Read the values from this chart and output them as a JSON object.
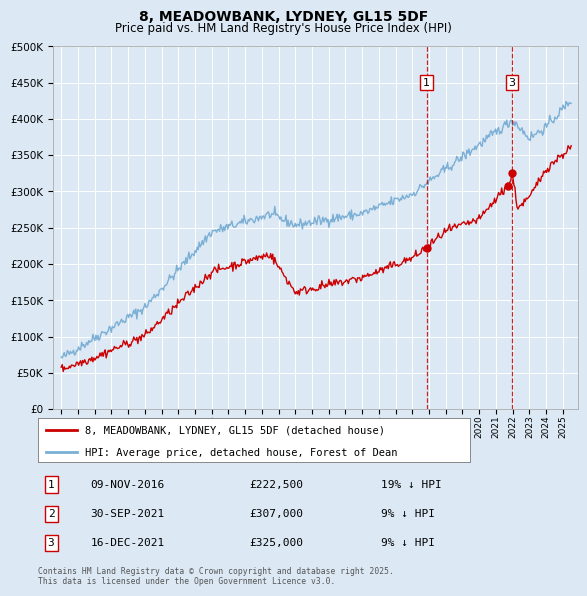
{
  "title": "8, MEADOWBANK, LYDNEY, GL15 5DF",
  "subtitle": "Price paid vs. HM Land Registry's House Price Index (HPI)",
  "ylim": [
    0,
    500000
  ],
  "yticks": [
    0,
    50000,
    100000,
    150000,
    200000,
    250000,
    300000,
    350000,
    400000,
    450000,
    500000
  ],
  "background_color": "#dce9f5",
  "legend_items": [
    "8, MEADOWBANK, LYDNEY, GL15 5DF (detached house)",
    "HPI: Average price, detached house, Forest of Dean"
  ],
  "legend_colors": [
    "#cc0000",
    "#7bafd4"
  ],
  "sale_dates": [
    "09-NOV-2016",
    "30-SEP-2021",
    "16-DEC-2021"
  ],
  "sale_years_float": [
    2016.86,
    2021.75,
    2021.96
  ],
  "sale_prices": [
    222500,
    307000,
    325000
  ],
  "sale_labels": [
    "1",
    "2",
    "3"
  ],
  "sale_hpi_diff": [
    "19% ↓ HPI",
    "9% ↓ HPI",
    "9% ↓ HPI"
  ],
  "vline_color": "#cc0000",
  "vline_indices": [
    0,
    2
  ],
  "footer": "Contains HM Land Registry data © Crown copyright and database right 2025.\nThis data is licensed under the Open Government Licence v3.0."
}
